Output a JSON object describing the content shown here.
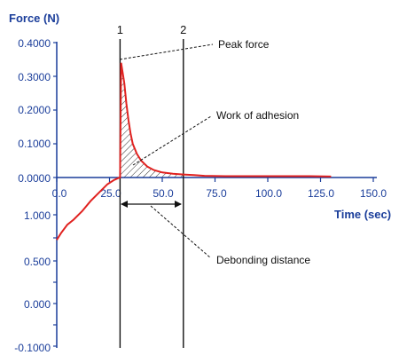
{
  "chart_data": {
    "type": "line",
    "ylabel": "Force (N)",
    "xlabel": "Time (sec)",
    "xlim": [
      0,
      150
    ],
    "x_ticks": [
      "0.0",
      "25.0",
      "50.0",
      "75.0",
      "100.0",
      "125.0",
      "150.0"
    ],
    "y_ticks_upper": [
      "0.4000",
      "0.3000",
      "0.2000",
      "0.1000",
      "0.0000"
    ],
    "y_ticks_lower": [
      "1.000",
      "0.500",
      "0.000",
      "-0.1000"
    ],
    "markers": [
      {
        "label": "1",
        "x": 30
      },
      {
        "label": "2",
        "x": 60
      }
    ],
    "annotations": {
      "peak": "Peak force",
      "work": "Work of adhesion",
      "debond": "Debonding distance"
    },
    "colors": {
      "curve": "#e0211f",
      "axis": "#1a3d9a",
      "line": "#111111"
    },
    "series": [
      {
        "x": [
          0,
          2,
          5,
          8,
          12,
          16,
          20,
          24,
          27,
          29,
          30,
          30.5,
          31,
          32,
          33,
          34,
          35,
          36,
          38,
          40,
          43,
          46,
          50,
          55,
          60,
          65,
          70,
          80,
          90,
          100,
          110,
          120,
          130
        ],
        "y": [
          -0.185,
          -0.165,
          -0.14,
          -0.125,
          -0.1,
          -0.07,
          -0.045,
          -0.02,
          -0.008,
          -0.002,
          0,
          0.34,
          0.32,
          0.28,
          0.22,
          0.17,
          0.13,
          0.1,
          0.07,
          0.05,
          0.032,
          0.022,
          0.015,
          0.011,
          0.009,
          0.007,
          0.005,
          0.004,
          0.004,
          0.004,
          0.004,
          0.004,
          0.003
        ]
      }
    ]
  }
}
